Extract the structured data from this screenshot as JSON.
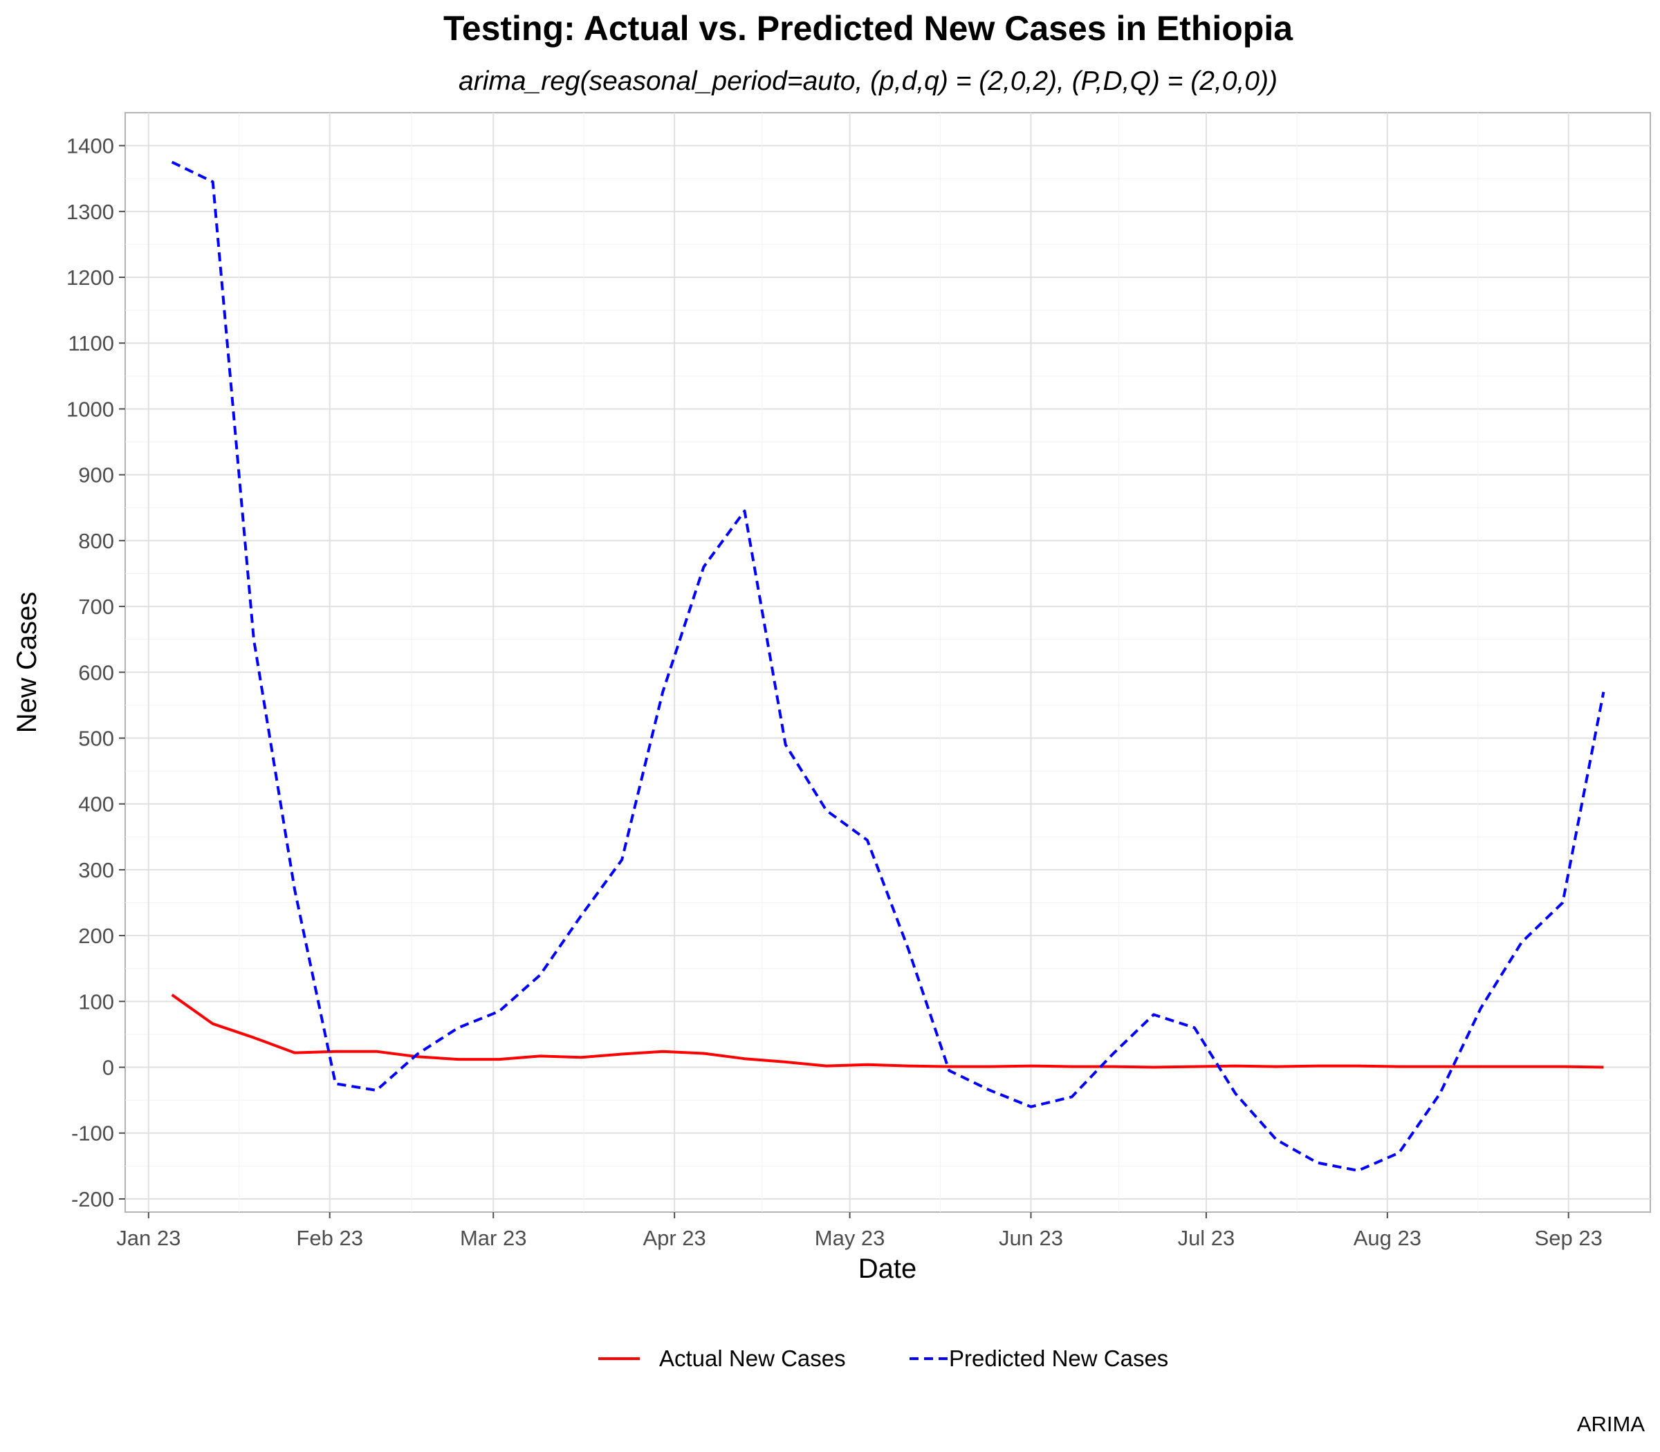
{
  "chart_data": {
    "type": "line",
    "title": "Testing: Actual vs. Predicted New Cases in Ethiopia",
    "subtitle": "arima_reg(seasonal_period=auto, (p,d,q) = (2,0,2), (P,D,Q) = (2,0,0))",
    "xlabel": "Date",
    "ylabel": "New Cases",
    "caption": "ARIMA",
    "xlim": [
      "2022-12-28",
      "2023-09-15"
    ],
    "ylim": [
      -220,
      1450
    ],
    "x_ticks": [
      {
        "date": "2023-01-01",
        "label": "Jan 23"
      },
      {
        "date": "2023-02-01",
        "label": "Feb 23"
      },
      {
        "date": "2023-03-01",
        "label": "Mar 23"
      },
      {
        "date": "2023-04-01",
        "label": "Apr 23"
      },
      {
        "date": "2023-05-01",
        "label": "May 23"
      },
      {
        "date": "2023-06-01",
        "label": "Jun 23"
      },
      {
        "date": "2023-07-01",
        "label": "Jul 23"
      },
      {
        "date": "2023-08-01",
        "label": "Aug 23"
      },
      {
        "date": "2023-09-01",
        "label": "Sep 23"
      }
    ],
    "y_ticks": [
      -200,
      -100,
      0,
      100,
      200,
      300,
      400,
      500,
      600,
      700,
      800,
      900,
      1000,
      1100,
      1200,
      1300,
      1400
    ],
    "grid": true,
    "legend_position": "bottom",
    "x": [
      "2023-01-05",
      "2023-01-12",
      "2023-01-19",
      "2023-01-26",
      "2023-02-02",
      "2023-02-09",
      "2023-02-16",
      "2023-02-23",
      "2023-03-02",
      "2023-03-09",
      "2023-03-16",
      "2023-03-23",
      "2023-03-30",
      "2023-04-06",
      "2023-04-13",
      "2023-04-20",
      "2023-04-27",
      "2023-05-04",
      "2023-05-11",
      "2023-05-18",
      "2023-05-25",
      "2023-06-01",
      "2023-06-08",
      "2023-06-15",
      "2023-06-22",
      "2023-06-29",
      "2023-07-06",
      "2023-07-13",
      "2023-07-20",
      "2023-07-27",
      "2023-08-03",
      "2023-08-10",
      "2023-08-17",
      "2023-08-24",
      "2023-08-31",
      "2023-09-07"
    ],
    "series": [
      {
        "name": "Actual New Cases",
        "color": "#ff0000",
        "style": "solid",
        "values": [
          110,
          66,
          45,
          22,
          24,
          24,
          16,
          12,
          12,
          17,
          15,
          20,
          24,
          21,
          13,
          8,
          2,
          4,
          2,
          1,
          1,
          2,
          1,
          1,
          0,
          1,
          2,
          1,
          2,
          2,
          1,
          1,
          1,
          1,
          1,
          0
        ]
      },
      {
        "name": "Predicted New Cases",
        "color": "#0000ff",
        "style": "dashed",
        "values": [
          1375,
          1345,
          650,
          270,
          -25,
          -35,
          20,
          60,
          85,
          140,
          230,
          315,
          570,
          760,
          845,
          490,
          390,
          345,
          180,
          -5,
          -35,
          -60,
          -45,
          20,
          80,
          60,
          -40,
          -110,
          -145,
          -157,
          -130,
          -40,
          90,
          190,
          250,
          570
        ]
      }
    ]
  }
}
